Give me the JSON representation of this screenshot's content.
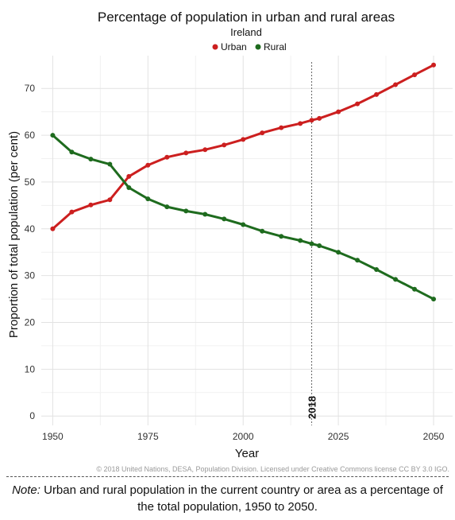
{
  "chart_data": {
    "type": "line",
    "title": "Percentage of population in urban and rural areas",
    "subtitle": "Ireland",
    "xlabel": "Year",
    "ylabel": "Proportion of total population (per cent)",
    "xlim": [
      1947,
      2055
    ],
    "ylim": [
      -2,
      77
    ],
    "xticks": [
      1950,
      1975,
      2000,
      2025,
      2050
    ],
    "yticks": [
      0,
      10,
      20,
      30,
      40,
      50,
      60,
      70
    ],
    "grid": true,
    "legend": "top-center",
    "marker": {
      "x": 2018,
      "label": "2018"
    },
    "x": [
      1950,
      1955,
      1960,
      1965,
      1970,
      1975,
      1980,
      1985,
      1990,
      1995,
      2000,
      2005,
      2010,
      2015,
      2018,
      2020,
      2025,
      2030,
      2035,
      2040,
      2045,
      2050
    ],
    "series": [
      {
        "name": "Urban",
        "color": "#cc1f1f",
        "values": [
          40.0,
          43.6,
          45.1,
          46.2,
          51.2,
          53.6,
          55.3,
          56.2,
          56.9,
          57.9,
          59.1,
          60.5,
          61.6,
          62.5,
          63.2,
          63.6,
          65.0,
          66.7,
          68.7,
          70.8,
          72.9,
          75.0
        ]
      },
      {
        "name": "Rural",
        "color": "#1e6b1e",
        "values": [
          60.0,
          56.4,
          54.9,
          53.8,
          48.8,
          46.4,
          44.7,
          43.8,
          43.1,
          42.1,
          40.9,
          39.5,
          38.4,
          37.5,
          36.8,
          36.4,
          35.0,
          33.3,
          31.3,
          29.2,
          27.1,
          25.0
        ]
      }
    ]
  },
  "credit": "© 2018 United Nations, DESA, Population Division. Licensed under Creative Commons license CC BY 3.0 IGO.",
  "note": {
    "label": "Note:",
    "text": " Urban and rural population in the current country or area as a percentage of the total population, 1950 to 2050."
  }
}
